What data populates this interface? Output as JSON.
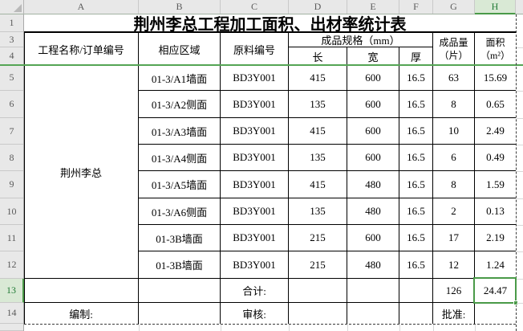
{
  "app": {
    "column_headers": [
      "A",
      "B",
      "C",
      "D",
      "E",
      "F",
      "G",
      "H"
    ],
    "selected_column": "H",
    "row_headers": [
      "1",
      "3",
      "4",
      "5",
      "6",
      "7",
      "8",
      "9",
      "10",
      "11",
      "12",
      "13",
      "14",
      ""
    ],
    "selected_row": "13"
  },
  "title": "荆州李总工程加工面积、出材率统计表",
  "headers": {
    "project": "工程名称/订单编号",
    "region": "相应区域",
    "material": "原料编号",
    "spec": "成品规格（mm）",
    "len": "长",
    "wid": "宽",
    "thk": "厚",
    "qty1": "成品量",
    "qty2": "（片）",
    "area1": "面积",
    "area2": "（m²）"
  },
  "project_name": "荆州李总",
  "rows": [
    {
      "region": "01-3/A1墙面",
      "material": "BD3Y001",
      "length": "415",
      "width": "600",
      "thickness": "16.5",
      "qty": "63",
      "area": "15.69"
    },
    {
      "region": "01-3/A2侧面",
      "material": "BD3Y001",
      "length": "135",
      "width": "600",
      "thickness": "16.5",
      "qty": "8",
      "area": "0.65"
    },
    {
      "region": "01-3/A3墙面",
      "material": "BD3Y001",
      "length": "415",
      "width": "600",
      "thickness": "16.5",
      "qty": "10",
      "area": "2.49"
    },
    {
      "region": "01-3/A4侧面",
      "material": "BD3Y001",
      "length": "135",
      "width": "600",
      "thickness": "16.5",
      "qty": "6",
      "area": "0.49"
    },
    {
      "region": "01-3/A5墙面",
      "material": "BD3Y001",
      "length": "415",
      "width": "480",
      "thickness": "16.5",
      "qty": "8",
      "area": "1.59"
    },
    {
      "region": "01-3/A6侧面",
      "material": "BD3Y001",
      "length": "135",
      "width": "480",
      "thickness": "16.5",
      "qty": "2",
      "area": "0.13"
    },
    {
      "region": "01-3B墙面",
      "material": "BD3Y001",
      "length": "215",
      "width": "600",
      "thickness": "16.5",
      "qty": "17",
      "area": "2.19"
    },
    {
      "region": "01-3B墙面",
      "material": "BD3Y001",
      "length": "215",
      "width": "480",
      "thickness": "16.5",
      "qty": "12",
      "area": "1.24"
    }
  ],
  "total": {
    "label": "合计:",
    "qty": "126",
    "area": "24.47"
  },
  "footer": {
    "prepared": "编制:",
    "reviewed": "审核:",
    "approved": "批准:"
  },
  "colors": {
    "selection_green": "#4a9a48",
    "header_highlight_bg": "#d9e9d5",
    "header_highlight_text": "#217a36",
    "freeze_line": "#55a555"
  }
}
